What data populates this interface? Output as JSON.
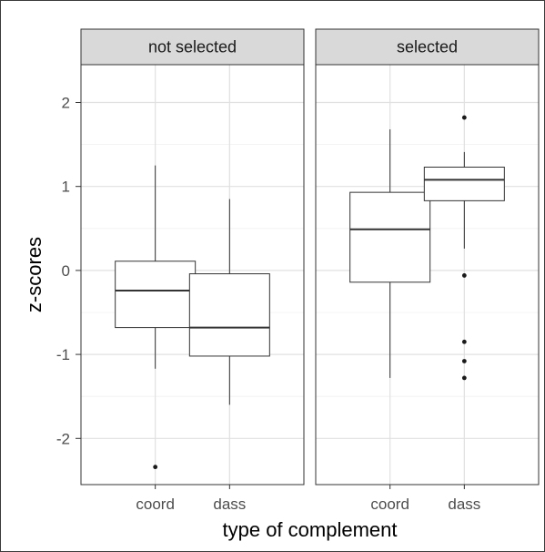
{
  "chart_data": {
    "type": "box",
    "xlabel": "type of complement",
    "ylabel": "z-scores",
    "ylim": [
      -2.55,
      2.45
    ],
    "yticks": [
      -2,
      -1,
      0,
      1,
      2
    ],
    "ytick_labels": [
      "-2",
      "-1",
      "0",
      "1",
      "2"
    ],
    "categories": [
      "coord",
      "dass"
    ],
    "grid": true,
    "facets": [
      {
        "label": "not selected",
        "boxes": [
          {
            "category": "coord",
            "min": -1.17,
            "q1": -0.68,
            "median": -0.24,
            "q3": 0.11,
            "max": 1.25,
            "outliers": [
              -2.34
            ]
          },
          {
            "category": "dass",
            "min": -1.6,
            "q1": -1.02,
            "median": -0.68,
            "q3": -0.04,
            "max": 0.85,
            "outliers": []
          }
        ]
      },
      {
        "label": "selected",
        "boxes": [
          {
            "category": "coord",
            "min": -1.28,
            "q1": -0.14,
            "median": 0.49,
            "q3": 0.93,
            "max": 1.68,
            "outliers": []
          },
          {
            "category": "dass",
            "min": 0.26,
            "q1": 0.83,
            "median": 1.08,
            "q3": 1.23,
            "max": 1.41,
            "outliers": [
              1.82,
              -0.06,
              -0.85,
              -1.08,
              -1.28
            ]
          }
        ]
      }
    ]
  }
}
